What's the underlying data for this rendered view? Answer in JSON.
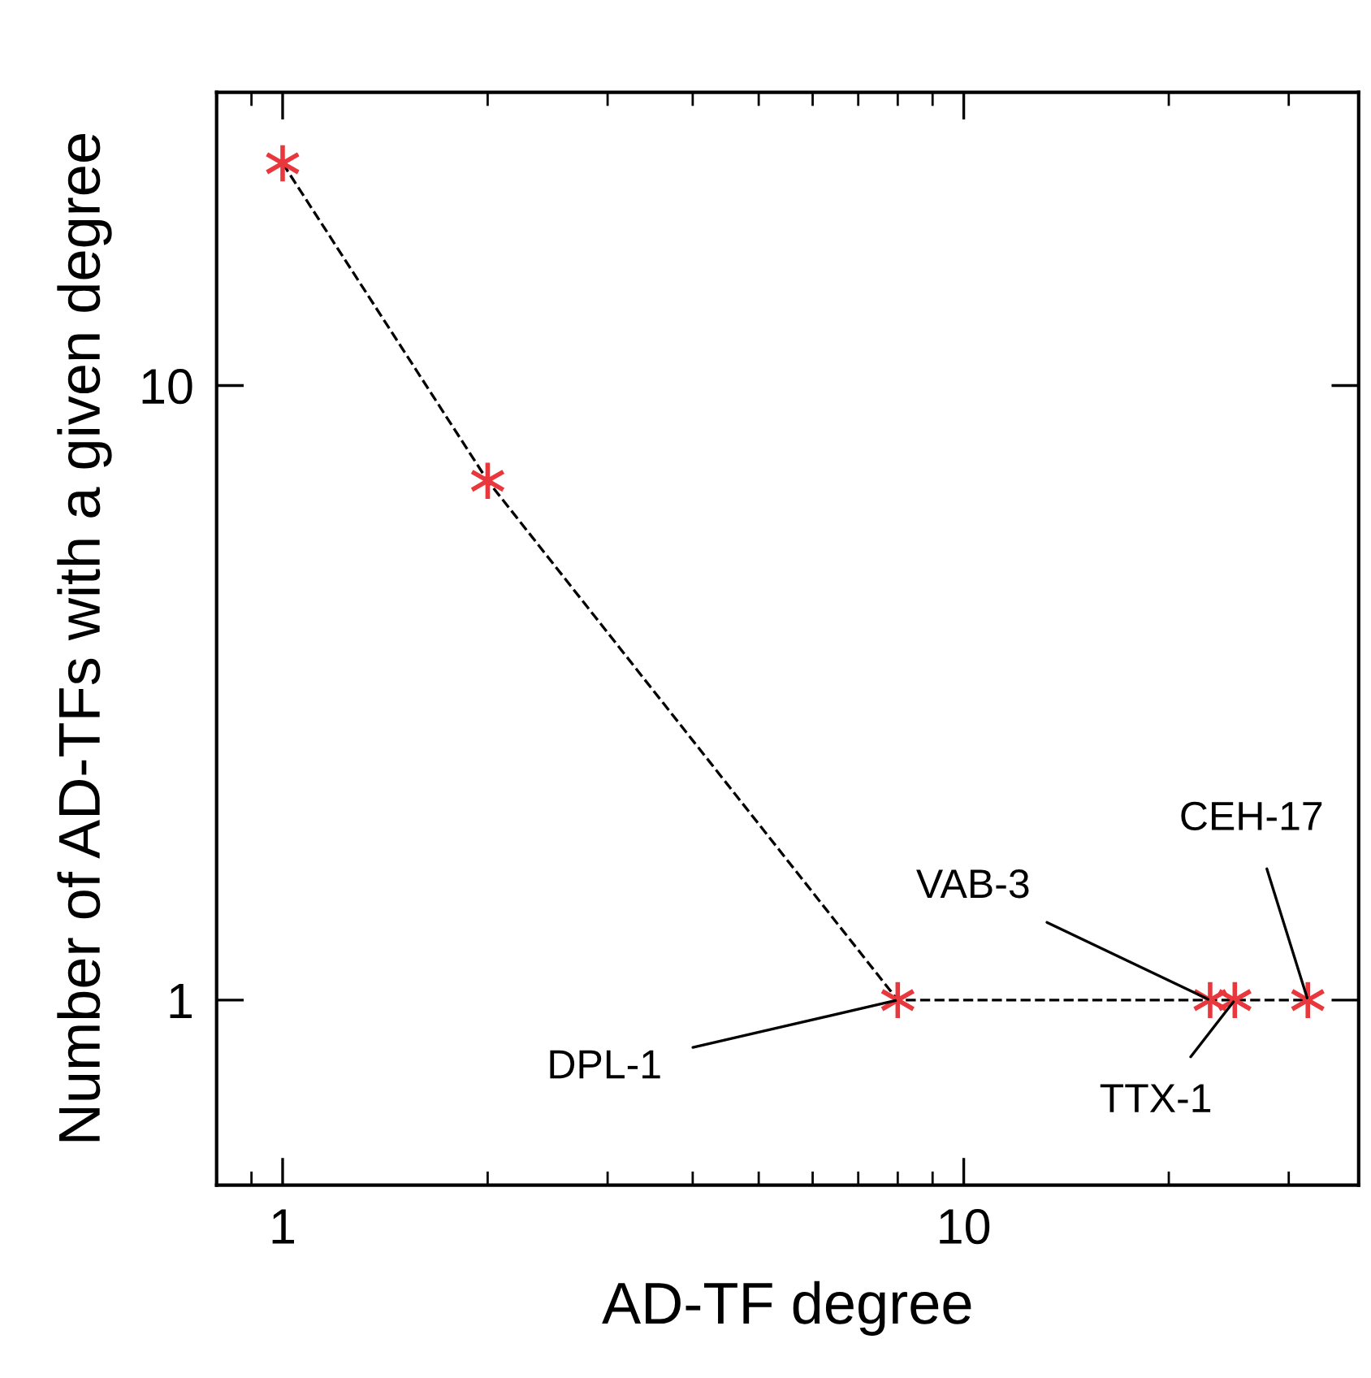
{
  "chart_data": {
    "type": "line",
    "xlabel": "AD-TF degree",
    "ylabel": "Number of AD-TFs with a given degree",
    "x": [
      1,
      2,
      8,
      23,
      25,
      32
    ],
    "series": [
      {
        "color": "#e8383d",
        "values": [
          23,
          7,
          1,
          1,
          1,
          1
        ]
      }
    ],
    "log": "xy",
    "xlim": [
      0.8,
      38
    ],
    "ylim": [
      0.5,
      30
    ],
    "xticks": [
      1,
      10
    ],
    "yticks": [
      1,
      10
    ],
    "marker": "cross",
    "line_style": "dashed",
    "grid": false,
    "legend": false,
    "annotations": [
      {
        "text": "DPL-1",
        "x": 8,
        "y": 1
      },
      {
        "text": "VAB-3",
        "x": 23,
        "y": 1
      },
      {
        "text": "TTX-1",
        "x": 25,
        "y": 1
      },
      {
        "text": "CEH-17",
        "x": 32,
        "y": 1
      }
    ]
  }
}
